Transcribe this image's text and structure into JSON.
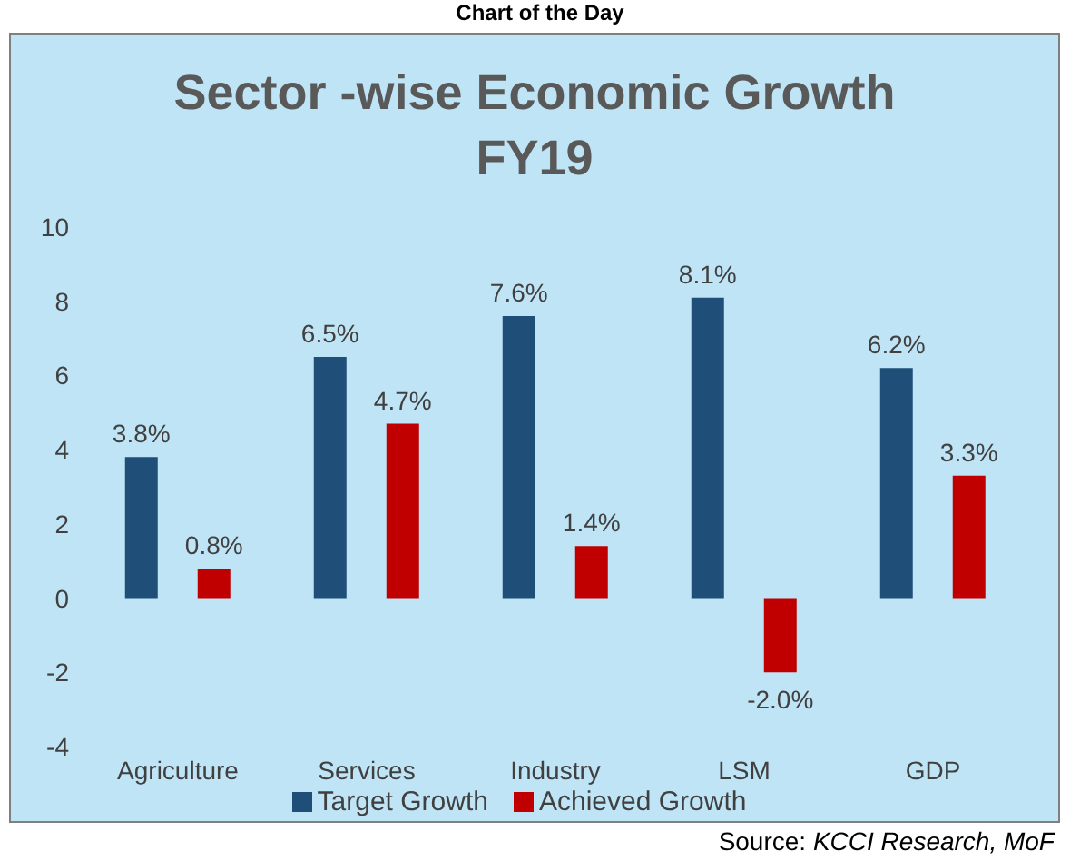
{
  "chart_data": {
    "type": "bar",
    "title": "Sector -wise Economic Growth\nFY19",
    "categories": [
      "Agriculture",
      "Services",
      "Industry",
      "LSM",
      "GDP"
    ],
    "series": [
      {
        "name": "Target Growth",
        "color": "#1f4e79",
        "values": [
          3.8,
          6.5,
          7.6,
          8.1,
          6.2
        ],
        "value_labels": [
          "3.8%",
          "6.5%",
          "7.6%",
          "8.1%",
          "6.2%"
        ]
      },
      {
        "name": "Achieved Growth",
        "color": "#c00000",
        "values": [
          0.8,
          4.7,
          1.4,
          -2.0,
          3.3
        ],
        "value_labels": [
          "0.8%",
          "4.7%",
          "1.4%",
          "-2.0%",
          "3.3%"
        ]
      }
    ],
    "ylim": [
      -4,
      10
    ],
    "yticks": [
      -4,
      -2,
      0,
      2,
      4,
      6,
      8,
      10
    ],
    "legend": "bottom",
    "annotations": [
      "Chart of the Day",
      "Source: KCCI Research, MoF"
    ]
  }
}
